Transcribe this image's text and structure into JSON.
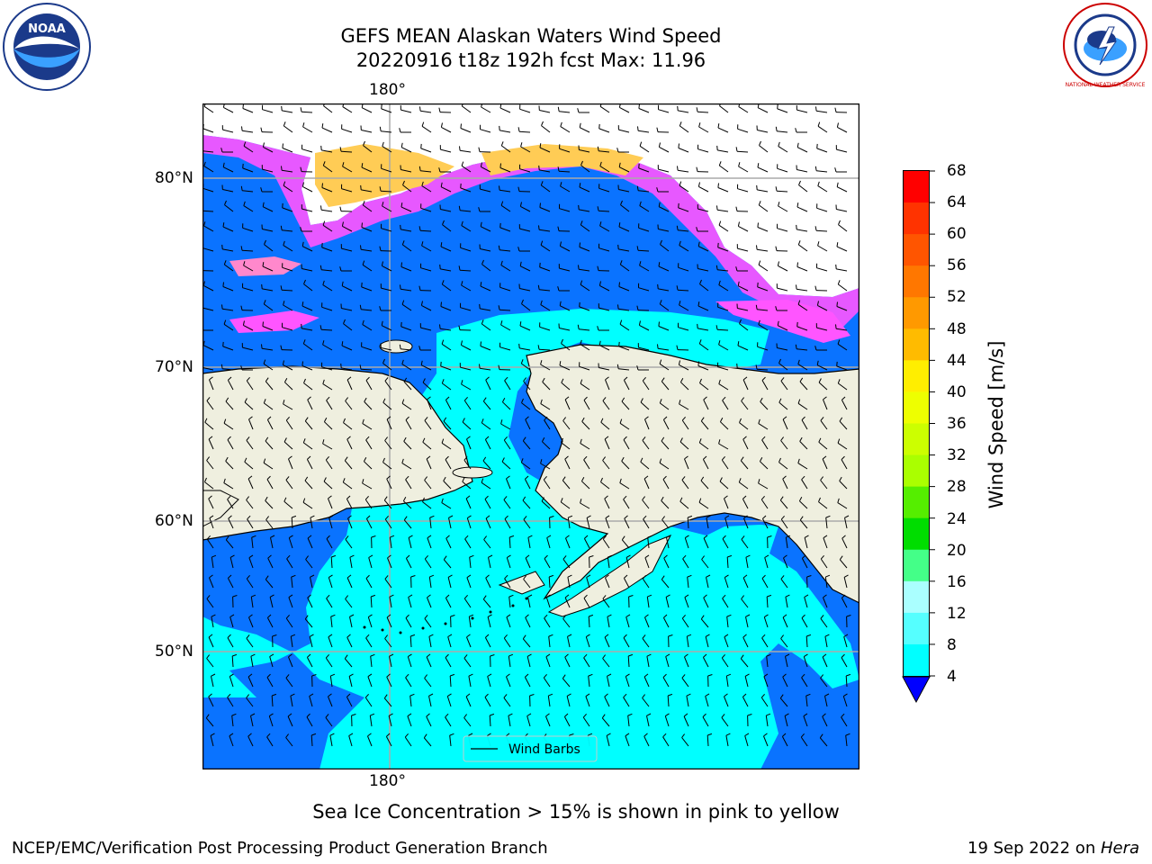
{
  "header": {
    "title_line1": "GEFS MEAN Alaskan Waters Wind Speed",
    "title_line2": "20220916 t18z 192h fcst   Max: 11.96"
  },
  "logos": {
    "noaa_text": "NOAA",
    "nws_text": "NATIONAL WEATHER SERVICE"
  },
  "map": {
    "top_lon_label": "180°",
    "bottom_lon_label": "180°",
    "lat_labels": [
      "80°N",
      "70°N",
      "60°N",
      "50°N"
    ],
    "legend_label": "Wind Barbs",
    "colors": {
      "ocean_low": "#0a73ff",
      "ocean_mid": "#00ffff",
      "land": "#efefdf",
      "ice_pink": "#ff55ff",
      "ice_yellow": "#ffcc55"
    }
  },
  "colorbar": {
    "label": "Wind Speed [m/s]",
    "ticks": [
      "68",
      "64",
      "60",
      "56",
      "52",
      "48",
      "44",
      "40",
      "36",
      "32",
      "28",
      "24",
      "20",
      "16",
      "12",
      "8",
      "4"
    ],
    "colors": [
      "#ff0000",
      "#ff3300",
      "#ff5500",
      "#ff7700",
      "#ff9900",
      "#ffbb00",
      "#ffee00",
      "#eeff00",
      "#ccff00",
      "#aaff00",
      "#55ee00",
      "#00dd00",
      "#44ff88",
      "#aaffff",
      "#55ffff",
      "#00ffff",
      "#0088ff"
    ],
    "extend_color": "#0000ff"
  },
  "caption": "Sea Ice Concentration > 15% is shown in pink to yellow",
  "footer": {
    "left": "NCEP/EMC/Verification Post Processing Product Generation Branch",
    "right_prefix": "19 Sep 2022 on ",
    "right_host": "Hera"
  }
}
